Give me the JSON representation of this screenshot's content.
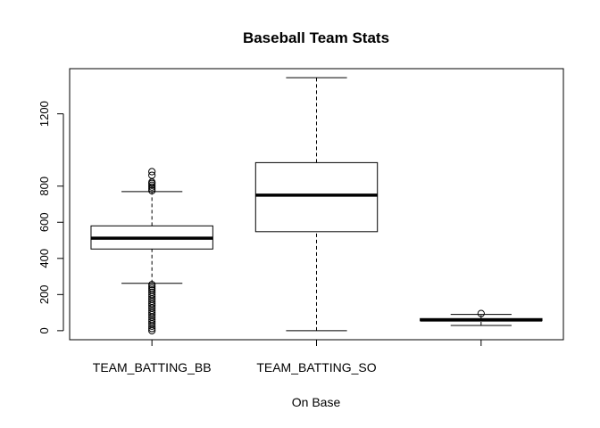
{
  "chart_data": {
    "type": "boxplot",
    "title": "Baseball Team Stats",
    "xlabel": "On Base",
    "ylabel": "",
    "ylim": [
      -50,
      1450
    ],
    "yticks": [
      0,
      200,
      400,
      600,
      800,
      1200
    ],
    "grid": false,
    "categories": [
      "TEAM_BATTING_BB",
      "TEAM_BATTING_SO",
      ""
    ],
    "boxes": [
      {
        "name": "TEAM_BATTING_BB",
        "whisker_low": 262,
        "q1": 452,
        "median": 512,
        "q3": 580,
        "whisker_high": 770,
        "outliers": [
          0,
          12,
          25,
          38,
          50,
          62,
          75,
          88,
          100,
          112,
          125,
          138,
          150,
          162,
          175,
          188,
          200,
          212,
          225,
          235,
          245,
          255,
          775,
          785,
          795,
          805,
          815,
          822,
          860,
          880
        ]
      },
      {
        "name": "TEAM_BATTING_SO",
        "whisker_low": 0,
        "q1": 548,
        "median": 750,
        "q3": 930,
        "whisker_high": 1400,
        "outliers": []
      },
      {
        "name": "",
        "whisker_low": 29,
        "q1": 55,
        "median": 59,
        "q3": 67,
        "whisker_high": 90,
        "outliers": [
          95
        ]
      }
    ]
  }
}
